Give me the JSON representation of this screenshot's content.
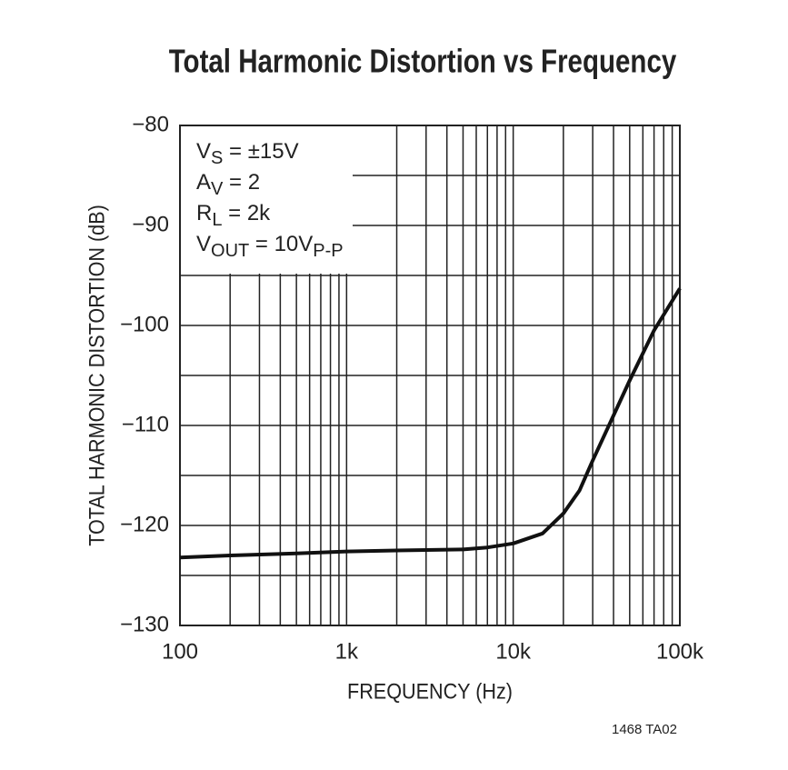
{
  "chart_data": {
    "type": "line",
    "title": "Total Harmonic Distortion vs Frequency",
    "x_label": "FREQUENCY (Hz)",
    "y_label": "TOTAL HARMONIC DISTORTION (dB)",
    "footnote": "1468 TA02",
    "x_log": true,
    "grid": true,
    "xlim": [
      100,
      100000
    ],
    "ylim": [
      -130,
      -80
    ],
    "xticks": [
      100,
      {
        "value": 1000,
        "label": "1k"
      },
      {
        "value": 10000,
        "label": "10k"
      },
      {
        "value": 100000,
        "label": "100k"
      }
    ],
    "yticks": [
      {
        "value": -80,
        "label": "−80"
      },
      {
        "value": -90,
        "label": "−90"
      },
      {
        "value": -100,
        "label": "−100"
      },
      {
        "value": -110,
        "label": "−110"
      },
      {
        "value": -120,
        "label": "−120"
      },
      {
        "value": -130,
        "label": "−130"
      }
    ],
    "annotations": [
      [
        {
          "text": "V"
        },
        {
          "text": "S",
          "sub": true
        },
        {
          "text": " = ±15V"
        }
      ],
      [
        {
          "text": "A"
        },
        {
          "text": "V",
          "sub": true
        },
        {
          "text": " = 2"
        }
      ],
      [
        {
          "text": "R"
        },
        {
          "text": "L",
          "sub": true
        },
        {
          "text": " = 2k"
        }
      ],
      [
        {
          "text": "V"
        },
        {
          "text": "OUT",
          "sub": true
        },
        {
          "text": " = 10V"
        },
        {
          "text": "P-P",
          "sub": true
        }
      ]
    ],
    "series": [
      {
        "color": "#111111",
        "x": [
          100,
          200,
          500,
          1000,
          2000,
          5000,
          7000,
          10000,
          15000,
          20000,
          25000,
          30000,
          40000,
          50000,
          70000,
          100000
        ],
        "values": [
          -123.2,
          -123.0,
          -122.8,
          -122.6,
          -122.5,
          -122.4,
          -122.2,
          -121.8,
          -120.8,
          -118.8,
          -116.5,
          -113.5,
          -109,
          -105.5,
          -100.5,
          -96.3
        ]
      }
    ]
  }
}
